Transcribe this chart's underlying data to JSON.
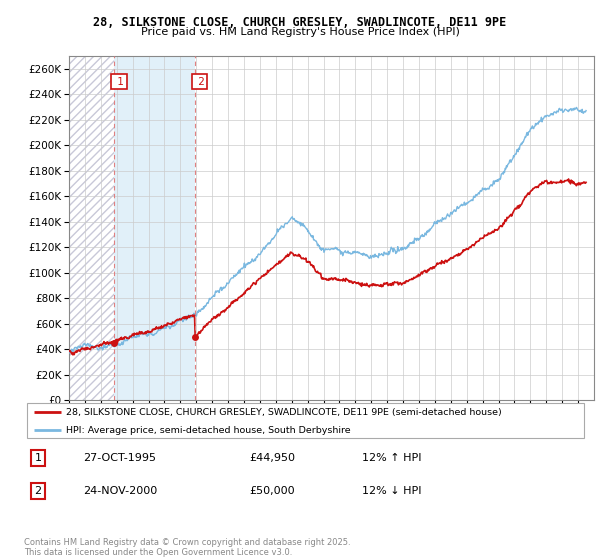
{
  "title1": "28, SILKSTONE CLOSE, CHURCH GRESLEY, SWADLINCOTE, DE11 9PE",
  "title2": "Price paid vs. HM Land Registry's House Price Index (HPI)",
  "ytick_vals": [
    0,
    20000,
    40000,
    60000,
    80000,
    100000,
    120000,
    140000,
    160000,
    180000,
    200000,
    220000,
    240000,
    260000
  ],
  "ylim": [
    0,
    270000
  ],
  "xlim_start": 1993,
  "xlim_end": 2026,
  "legend_line1": "28, SILKSTONE CLOSE, CHURCH GRESLEY, SWADLINCOTE, DE11 9PE (semi-detached house)",
  "legend_line2": "HPI: Average price, semi-detached house, South Derbyshire",
  "sale1_label": "1",
  "sale1_date": "27-OCT-1995",
  "sale1_price_str": "£44,950",
  "sale1_hpi_str": "12% ↑ HPI",
  "sale1_year": 1995.83,
  "sale1_price": 44950,
  "sale2_label": "2",
  "sale2_date": "24-NOV-2000",
  "sale2_price_str": "£50,000",
  "sale2_hpi_str": "12% ↓ HPI",
  "sale2_year": 2000.92,
  "sale2_price": 50000,
  "footer": "Contains HM Land Registry data © Crown copyright and database right 2025.\nThis data is licensed under the Open Government Licence v3.0.",
  "hpi_color": "#7ab8e0",
  "price_color": "#cc1111",
  "vline_color": "#e08080",
  "shade_color": "#dceef8",
  "hatch_color": "#d8d8e8",
  "grid_color": "#cccccc"
}
